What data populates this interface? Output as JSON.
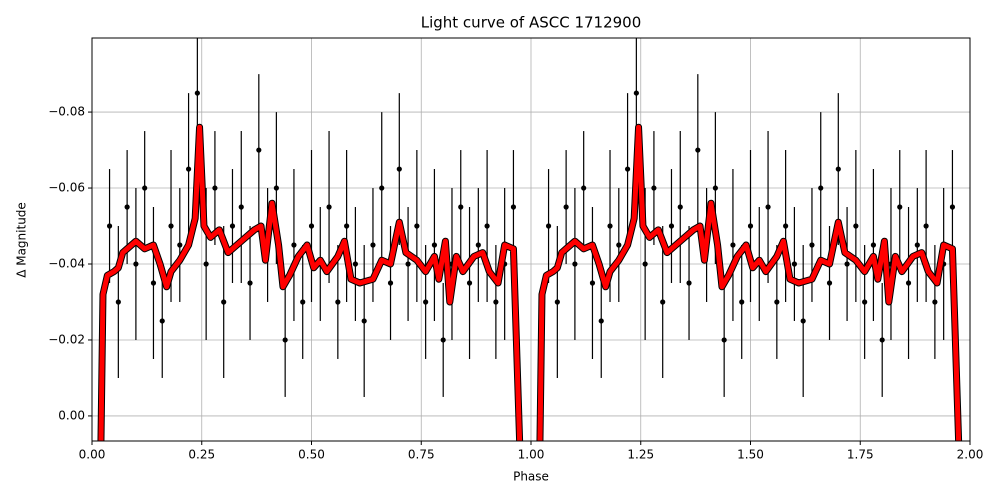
{
  "chart_data": {
    "type": "scatter",
    "title": "Light curve of ASCC 1712900",
    "x_label": "Phase",
    "y_label": "Δ Magnitude",
    "xlim": [
      0,
      2
    ],
    "ylim": [
      0.0066,
      -0.0995
    ],
    "xticks": [
      {
        "value": 0,
        "label": "0.00"
      },
      {
        "value": 0.25,
        "label": "0.25"
      },
      {
        "value": 0.5,
        "label": "0.50"
      },
      {
        "value": 0.75,
        "label": "0.75"
      },
      {
        "value": 1,
        "label": "1.00"
      },
      {
        "value": 1.25,
        "label": "1.25"
      },
      {
        "value": 1.5,
        "label": "1.50"
      },
      {
        "value": 1.75,
        "label": "1.75"
      },
      {
        "value": 2,
        "label": "2.00"
      }
    ],
    "yticks": [
      {
        "value": 0,
        "label": "0.00"
      },
      {
        "value": -0.02,
        "label": "−0.02"
      },
      {
        "value": -0.04,
        "label": "−0.04"
      },
      {
        "value": -0.06,
        "label": "−0.06"
      },
      {
        "value": -0.08,
        "label": "−0.08"
      }
    ],
    "grid": true,
    "points": {
      "color": "#000000",
      "x": [
        0.04,
        0.06,
        0.08,
        0.1,
        0.12,
        0.14,
        0.16,
        0.18,
        0.2,
        0.22,
        0.24,
        0.26,
        0.28,
        0.3,
        0.32,
        0.34,
        0.36,
        0.38,
        0.4,
        0.42,
        0.44,
        0.46,
        0.48,
        0.5,
        0.52,
        0.54,
        0.56,
        0.58,
        0.6,
        0.62,
        0.64,
        0.66,
        0.68,
        0.7,
        0.72,
        0.74,
        0.76,
        0.78,
        0.8,
        0.82,
        0.84,
        0.86,
        0.88,
        0.9,
        0.92,
        0.94,
        0.96,
        1.04,
        1.06,
        1.08,
        1.1,
        1.12,
        1.14,
        1.16,
        1.18,
        1.2,
        1.22,
        1.24,
        1.26,
        1.28,
        1.3,
        1.32,
        1.34,
        1.36,
        1.38,
        1.4,
        1.42,
        1.44,
        1.46,
        1.48,
        1.5,
        1.52,
        1.54,
        1.56,
        1.58,
        1.6,
        1.62,
        1.64,
        1.66,
        1.68,
        1.7,
        1.72,
        1.74,
        1.76,
        1.78,
        1.8,
        1.82,
        1.84,
        1.86,
        1.88,
        1.9,
        1.92,
        1.94,
        1.96
      ],
      "values": [
        -0.05,
        -0.03,
        -0.055,
        -0.04,
        -0.06,
        -0.035,
        -0.025,
        -0.05,
        -0.045,
        -0.065,
        -0.085,
        -0.04,
        -0.06,
        -0.03,
        -0.05,
        -0.055,
        -0.035,
        -0.07,
        -0.045,
        -0.06,
        -0.02,
        -0.045,
        -0.03,
        -0.05,
        -0.04,
        -0.055,
        -0.03,
        -0.05,
        -0.04,
        -0.025,
        -0.045,
        -0.06,
        -0.035,
        -0.065,
        -0.04,
        -0.05,
        -0.03,
        -0.045,
        -0.02,
        -0.04,
        -0.055,
        -0.035,
        -0.045,
        -0.05,
        -0.03,
        -0.04,
        -0.055,
        -0.05,
        -0.03,
        -0.055,
        -0.04,
        -0.06,
        -0.035,
        -0.025,
        -0.05,
        -0.045,
        -0.065,
        -0.085,
        -0.04,
        -0.06,
        -0.03,
        -0.05,
        -0.055,
        -0.035,
        -0.07,
        -0.045,
        -0.06,
        -0.02,
        -0.045,
        -0.03,
        -0.05,
        -0.04,
        -0.055,
        -0.03,
        -0.05,
        -0.04,
        -0.025,
        -0.045,
        -0.06,
        -0.035,
        -0.065,
        -0.04,
        -0.05,
        -0.03,
        -0.045,
        -0.02,
        -0.04,
        -0.055,
        -0.035,
        -0.045,
        -0.05,
        -0.03,
        -0.04,
        -0.055
      ],
      "errors": [
        0.015,
        0.02,
        0.015,
        0.02,
        0.015,
        0.02,
        0.015,
        0.02,
        0.015,
        0.02,
        0.015,
        0.02,
        0.015,
        0.02,
        0.015,
        0.02,
        0.015,
        0.02,
        0.015,
        0.02,
        0.015,
        0.02,
        0.015,
        0.02,
        0.015,
        0.02,
        0.015,
        0.02,
        0.015,
        0.02,
        0.015,
        0.02,
        0.015,
        0.02,
        0.015,
        0.02,
        0.015,
        0.02,
        0.015,
        0.02,
        0.015,
        0.02,
        0.015,
        0.02,
        0.015,
        0.02,
        0.015,
        0.015,
        0.02,
        0.015,
        0.02,
        0.015,
        0.02,
        0.015,
        0.02,
        0.015,
        0.02,
        0.015,
        0.02,
        0.015,
        0.02,
        0.015,
        0.02,
        0.015,
        0.02,
        0.015,
        0.02,
        0.015,
        0.02,
        0.015,
        0.02,
        0.015,
        0.02,
        0.015,
        0.02,
        0.015,
        0.02,
        0.015,
        0.02,
        0.015,
        0.02,
        0.015,
        0.02,
        0.015,
        0.02,
        0.015,
        0.02,
        0.015,
        0.02,
        0.015,
        0.02,
        0.015,
        0.02,
        0.015
      ]
    },
    "curve": {
      "color": "#ff0000",
      "x": [
        0.02,
        0.025,
        0.035,
        0.05,
        0.06,
        0.07,
        0.08,
        0.1,
        0.12,
        0.14,
        0.155,
        0.17,
        0.18,
        0.2,
        0.22,
        0.235,
        0.245,
        0.255,
        0.27,
        0.29,
        0.31,
        0.33,
        0.35,
        0.37,
        0.385,
        0.395,
        0.41,
        0.425,
        0.435,
        0.45,
        0.47,
        0.49,
        0.505,
        0.52,
        0.535,
        0.56,
        0.575,
        0.59,
        0.61,
        0.64,
        0.66,
        0.68,
        0.7,
        0.715,
        0.74,
        0.76,
        0.78,
        0.79,
        0.805,
        0.815,
        0.83,
        0.845,
        0.87,
        0.89,
        0.905,
        0.925,
        0.94,
        0.96,
        0.975,
        1.02,
        1.025,
        1.035,
        1.05,
        1.06,
        1.07,
        1.08,
        1.1,
        1.12,
        1.14,
        1.155,
        1.17,
        1.18,
        1.2,
        1.22,
        1.235,
        1.245,
        1.255,
        1.27,
        1.29,
        1.31,
        1.33,
        1.35,
        1.37,
        1.385,
        1.395,
        1.41,
        1.425,
        1.435,
        1.45,
        1.47,
        1.49,
        1.505,
        1.52,
        1.535,
        1.56,
        1.575,
        1.59,
        1.61,
        1.64,
        1.66,
        1.68,
        1.7,
        1.715,
        1.74,
        1.76,
        1.78,
        1.79,
        1.805,
        1.815,
        1.83,
        1.845,
        1.87,
        1.89,
        1.905,
        1.925,
        1.94,
        1.96,
        1.975
      ],
      "values": [
        0.01,
        -0.032,
        -0.037,
        -0.038,
        -0.039,
        -0.043,
        -0.044,
        -0.046,
        -0.044,
        -0.045,
        -0.04,
        -0.034,
        -0.038,
        -0.041,
        -0.045,
        -0.052,
        -0.076,
        -0.05,
        -0.047,
        -0.049,
        -0.043,
        -0.045,
        -0.047,
        -0.049,
        -0.05,
        -0.041,
        -0.056,
        -0.045,
        -0.034,
        -0.037,
        -0.042,
        -0.045,
        -0.039,
        -0.041,
        -0.038,
        -0.042,
        -0.046,
        -0.036,
        -0.035,
        -0.036,
        -0.041,
        -0.04,
        -0.051,
        -0.043,
        -0.041,
        -0.038,
        -0.042,
        -0.036,
        -0.046,
        -0.03,
        -0.042,
        -0.038,
        -0.042,
        -0.043,
        -0.038,
        -0.035,
        -0.045,
        -0.044,
        0.01,
        0.01,
        -0.032,
        -0.037,
        -0.038,
        -0.039,
        -0.043,
        -0.044,
        -0.046,
        -0.044,
        -0.045,
        -0.04,
        -0.034,
        -0.038,
        -0.041,
        -0.045,
        -0.052,
        -0.076,
        -0.05,
        -0.047,
        -0.049,
        -0.043,
        -0.045,
        -0.047,
        -0.049,
        -0.05,
        -0.041,
        -0.056,
        -0.045,
        -0.034,
        -0.037,
        -0.042,
        -0.045,
        -0.039,
        -0.041,
        -0.038,
        -0.042,
        -0.046,
        -0.036,
        -0.035,
        -0.036,
        -0.041,
        -0.04,
        -0.051,
        -0.043,
        -0.041,
        -0.038,
        -0.042,
        -0.036,
        -0.046,
        -0.03,
        -0.042,
        -0.038,
        -0.042,
        -0.043,
        -0.038,
        -0.035,
        -0.045,
        -0.044,
        0.01
      ]
    }
  }
}
